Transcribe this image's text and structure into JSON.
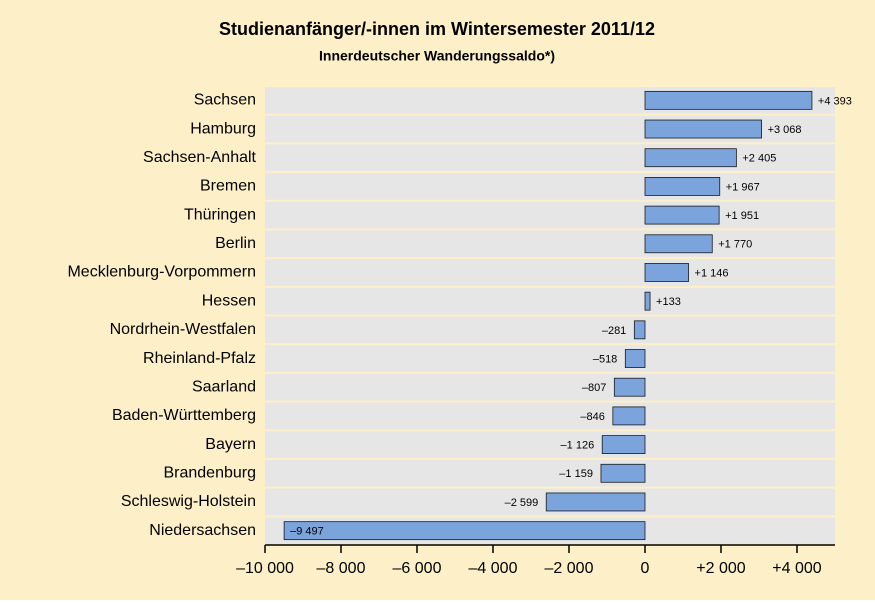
{
  "chart_data": {
    "type": "hbar",
    "title": "Studienanfänger/-innen im Wintersemester 2011/12",
    "subtitle": "Innerdeutscher Wanderungssaldo*)",
    "categories": [
      "Sachsen",
      "Hamburg",
      "Sachsen-Anhalt",
      "Bremen",
      "Thüringen",
      "Berlin",
      "Mecklenburg-Vorpommern",
      "Hessen",
      "Nordrhein-Westfalen",
      "Rheinland-Pfalz",
      "Saarland",
      "Baden-Württemberg",
      "Bayern",
      "Brandenburg",
      "Schleswig-Holstein",
      "Niedersachsen"
    ],
    "values": [
      4393,
      3068,
      2405,
      1967,
      1951,
      1770,
      1146,
      133,
      -281,
      -518,
      -807,
      -846,
      -1126,
      -1159,
      -2599,
      -9497
    ],
    "value_labels": [
      "+4 393",
      "+3 068",
      "+2 405",
      "+1 967",
      "+1 951",
      "+1 770",
      "+1 146",
      "+133",
      "–281",
      "–518",
      "–807",
      "–846",
      "–1 126",
      "–1 159",
      "–2 599",
      "–9 497"
    ],
    "color": "#7ba3dc",
    "xlim": [
      -10000,
      5000
    ],
    "xticks": [
      {
        "value": -10000,
        "label": "–10 000"
      },
      {
        "value": -8000,
        "label": "–8 000"
      },
      {
        "value": -6000,
        "label": "–6 000"
      },
      {
        "value": -4000,
        "label": "–4 000"
      },
      {
        "value": -2000,
        "label": "–2 000"
      },
      0,
      {
        "value": 2000,
        "label": "+2 000"
      },
      {
        "value": 4000,
        "label": "+4 000"
      }
    ]
  }
}
